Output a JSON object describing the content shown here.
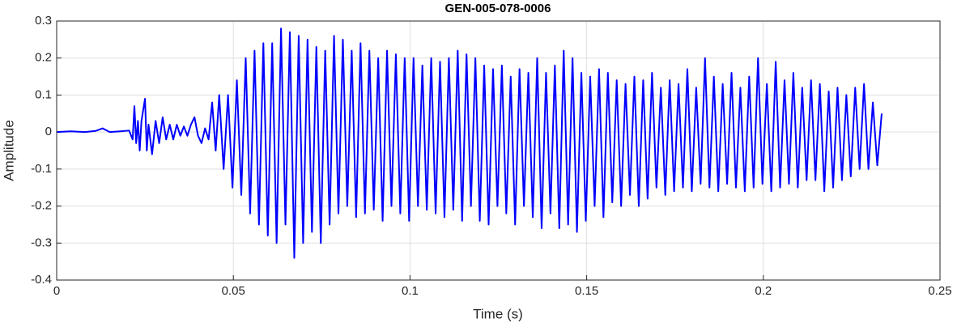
{
  "chart_data": {
    "type": "line",
    "title": "GEN-005-078-0006",
    "xlabel": "Time (s)",
    "ylabel": "Amplitude",
    "color": "#0000ff",
    "grid": true,
    "xlim": [
      0,
      0.25
    ],
    "xticks": [
      0,
      0.05,
      0.1,
      0.15,
      0.2,
      0.25
    ],
    "ylim": [
      -0.4,
      0.3
    ],
    "yticks": [
      -0.4,
      -0.3,
      -0.2,
      -0.1,
      0,
      0.1,
      0.2,
      0.3
    ],
    "x": [
      0,
      0.004,
      0.008,
      0.011,
      0.013,
      0.015,
      0.018,
      0.0205,
      0.0215,
      0.022,
      0.0225,
      0.023,
      0.0235,
      0.024,
      0.025,
      0.0255,
      0.026,
      0.027,
      0.028,
      0.029,
      0.03,
      0.031,
      0.032,
      0.033,
      0.034,
      0.035,
      0.036,
      0.037,
      0.038,
      0.039,
      0.04,
      0.041,
      0.042,
      0.043,
      0.044,
      0.045,
      0.046,
      0.04725,
      0.0485,
      0.04975,
      0.051,
      0.05225,
      0.0535,
      0.05475,
      0.056,
      0.05725,
      0.0585,
      0.05975,
      0.061,
      0.06225,
      0.0635,
      0.06475,
      0.066,
      0.06725,
      0.0685,
      0.06975,
      0.071,
      0.07225,
      0.0735,
      0.07475,
      0.076,
      0.07725,
      0.0785,
      0.07975,
      0.081,
      0.08225,
      0.0835,
      0.08475,
      0.086,
      0.08725,
      0.0885,
      0.08975,
      0.091,
      0.09225,
      0.0935,
      0.09475,
      0.096,
      0.09725,
      0.0985,
      0.09975,
      0.101,
      0.10225,
      0.1035,
      0.10475,
      0.106,
      0.10725,
      0.1085,
      0.10975,
      0.111,
      0.11225,
      0.1135,
      0.11475,
      0.116,
      0.11725,
      0.1185,
      0.11975,
      0.121,
      0.12225,
      0.1235,
      0.12475,
      0.126,
      0.12725,
      0.1285,
      0.12975,
      0.131,
      0.13225,
      0.1335,
      0.13475,
      0.136,
      0.13725,
      0.1385,
      0.13975,
      0.141,
      0.14225,
      0.1435,
      0.14475,
      0.146,
      0.14725,
      0.1485,
      0.14975,
      0.151,
      0.15225,
      0.1535,
      0.15475,
      0.156,
      0.15725,
      0.1585,
      0.15975,
      0.161,
      0.16225,
      0.1635,
      0.16475,
      0.166,
      0.16725,
      0.1685,
      0.16975,
      0.171,
      0.17225,
      0.1735,
      0.17475,
      0.176,
      0.17725,
      0.1785,
      0.17975,
      0.181,
      0.18225,
      0.1835,
      0.18475,
      0.186,
      0.18725,
      0.1885,
      0.18975,
      0.191,
      0.19225,
      0.1935,
      0.19475,
      0.196,
      0.19725,
      0.1985,
      0.19975,
      0.201,
      0.20225,
      0.2035,
      0.20475,
      0.206,
      0.20725,
      0.2085,
      0.20975,
      0.211,
      0.21225,
      0.2135,
      0.21475,
      0.216,
      0.21725,
      0.2185,
      0.21975,
      0.221,
      0.22225,
      0.2235,
      0.22475,
      0.226,
      0.22725,
      0.2285,
      0.22975,
      0.231,
      0.23225,
      0.2335
    ],
    "values": [
      0,
      0.002,
      0,
      0.003,
      0.01,
      0,
      0.002,
      0.004,
      -0.02,
      0.07,
      -0.03,
      0.03,
      -0.05,
      0.03,
      0.09,
      -0.05,
      0.02,
      -0.06,
      0.03,
      -0.03,
      0.04,
      -0.02,
      0.02,
      -0.02,
      0.02,
      -0.01,
      0.015,
      -0.01,
      0.02,
      0.04,
      -0.01,
      -0.03,
      0.01,
      -0.02,
      0.08,
      -0.05,
      0.1,
      -0.1,
      0.1,
      -0.15,
      0.14,
      -0.17,
      0.2,
      -0.22,
      0.22,
      -0.25,
      0.24,
      -0.28,
      0.24,
      -0.3,
      0.28,
      -0.25,
      0.27,
      -0.34,
      0.26,
      -0.3,
      0.25,
      -0.27,
      0.23,
      -0.3,
      0.22,
      -0.25,
      0.26,
      -0.22,
      0.25,
      -0.2,
      0.22,
      -0.23,
      0.24,
      -0.22,
      0.22,
      -0.21,
      0.2,
      -0.24,
      0.22,
      -0.2,
      0.21,
      -0.22,
      0.2,
      -0.24,
      0.2,
      -0.2,
      0.18,
      -0.21,
      0.2,
      -0.22,
      0.19,
      -0.23,
      0.2,
      -0.21,
      0.22,
      -0.24,
      0.21,
      -0.2,
      0.2,
      -0.24,
      0.18,
      -0.25,
      0.17,
      -0.2,
      0.18,
      -0.22,
      0.15,
      -0.25,
      0.17,
      -0.2,
      0.16,
      -0.23,
      0.2,
      -0.26,
      0.16,
      -0.22,
      0.18,
      -0.26,
      0.22,
      -0.25,
      0.2,
      -0.27,
      0.16,
      -0.24,
      0.15,
      -0.2,
      0.17,
      -0.23,
      0.16,
      -0.19,
      0.14,
      -0.2,
      0.13,
      -0.17,
      0.15,
      -0.2,
      0.14,
      -0.18,
      0.16,
      -0.15,
      0.12,
      -0.17,
      0.14,
      -0.16,
      0.13,
      -0.15,
      0.17,
      -0.16,
      0.12,
      -0.14,
      0.2,
      -0.15,
      0.15,
      -0.16,
      0.13,
      -0.14,
      0.16,
      -0.15,
      0.12,
      -0.16,
      0.15,
      -0.15,
      0.2,
      -0.14,
      0.13,
      -0.16,
      0.19,
      -0.15,
      0.14,
      -0.14,
      0.16,
      -0.15,
      0.12,
      -0.13,
      0.14,
      -0.13,
      0.13,
      -0.16,
      0.11,
      -0.15,
      0.12,
      -0.13,
      0.1,
      -0.12,
      0.12,
      -0.1,
      0.13,
      -0.1,
      0.08,
      -0.09,
      0.05
    ]
  }
}
